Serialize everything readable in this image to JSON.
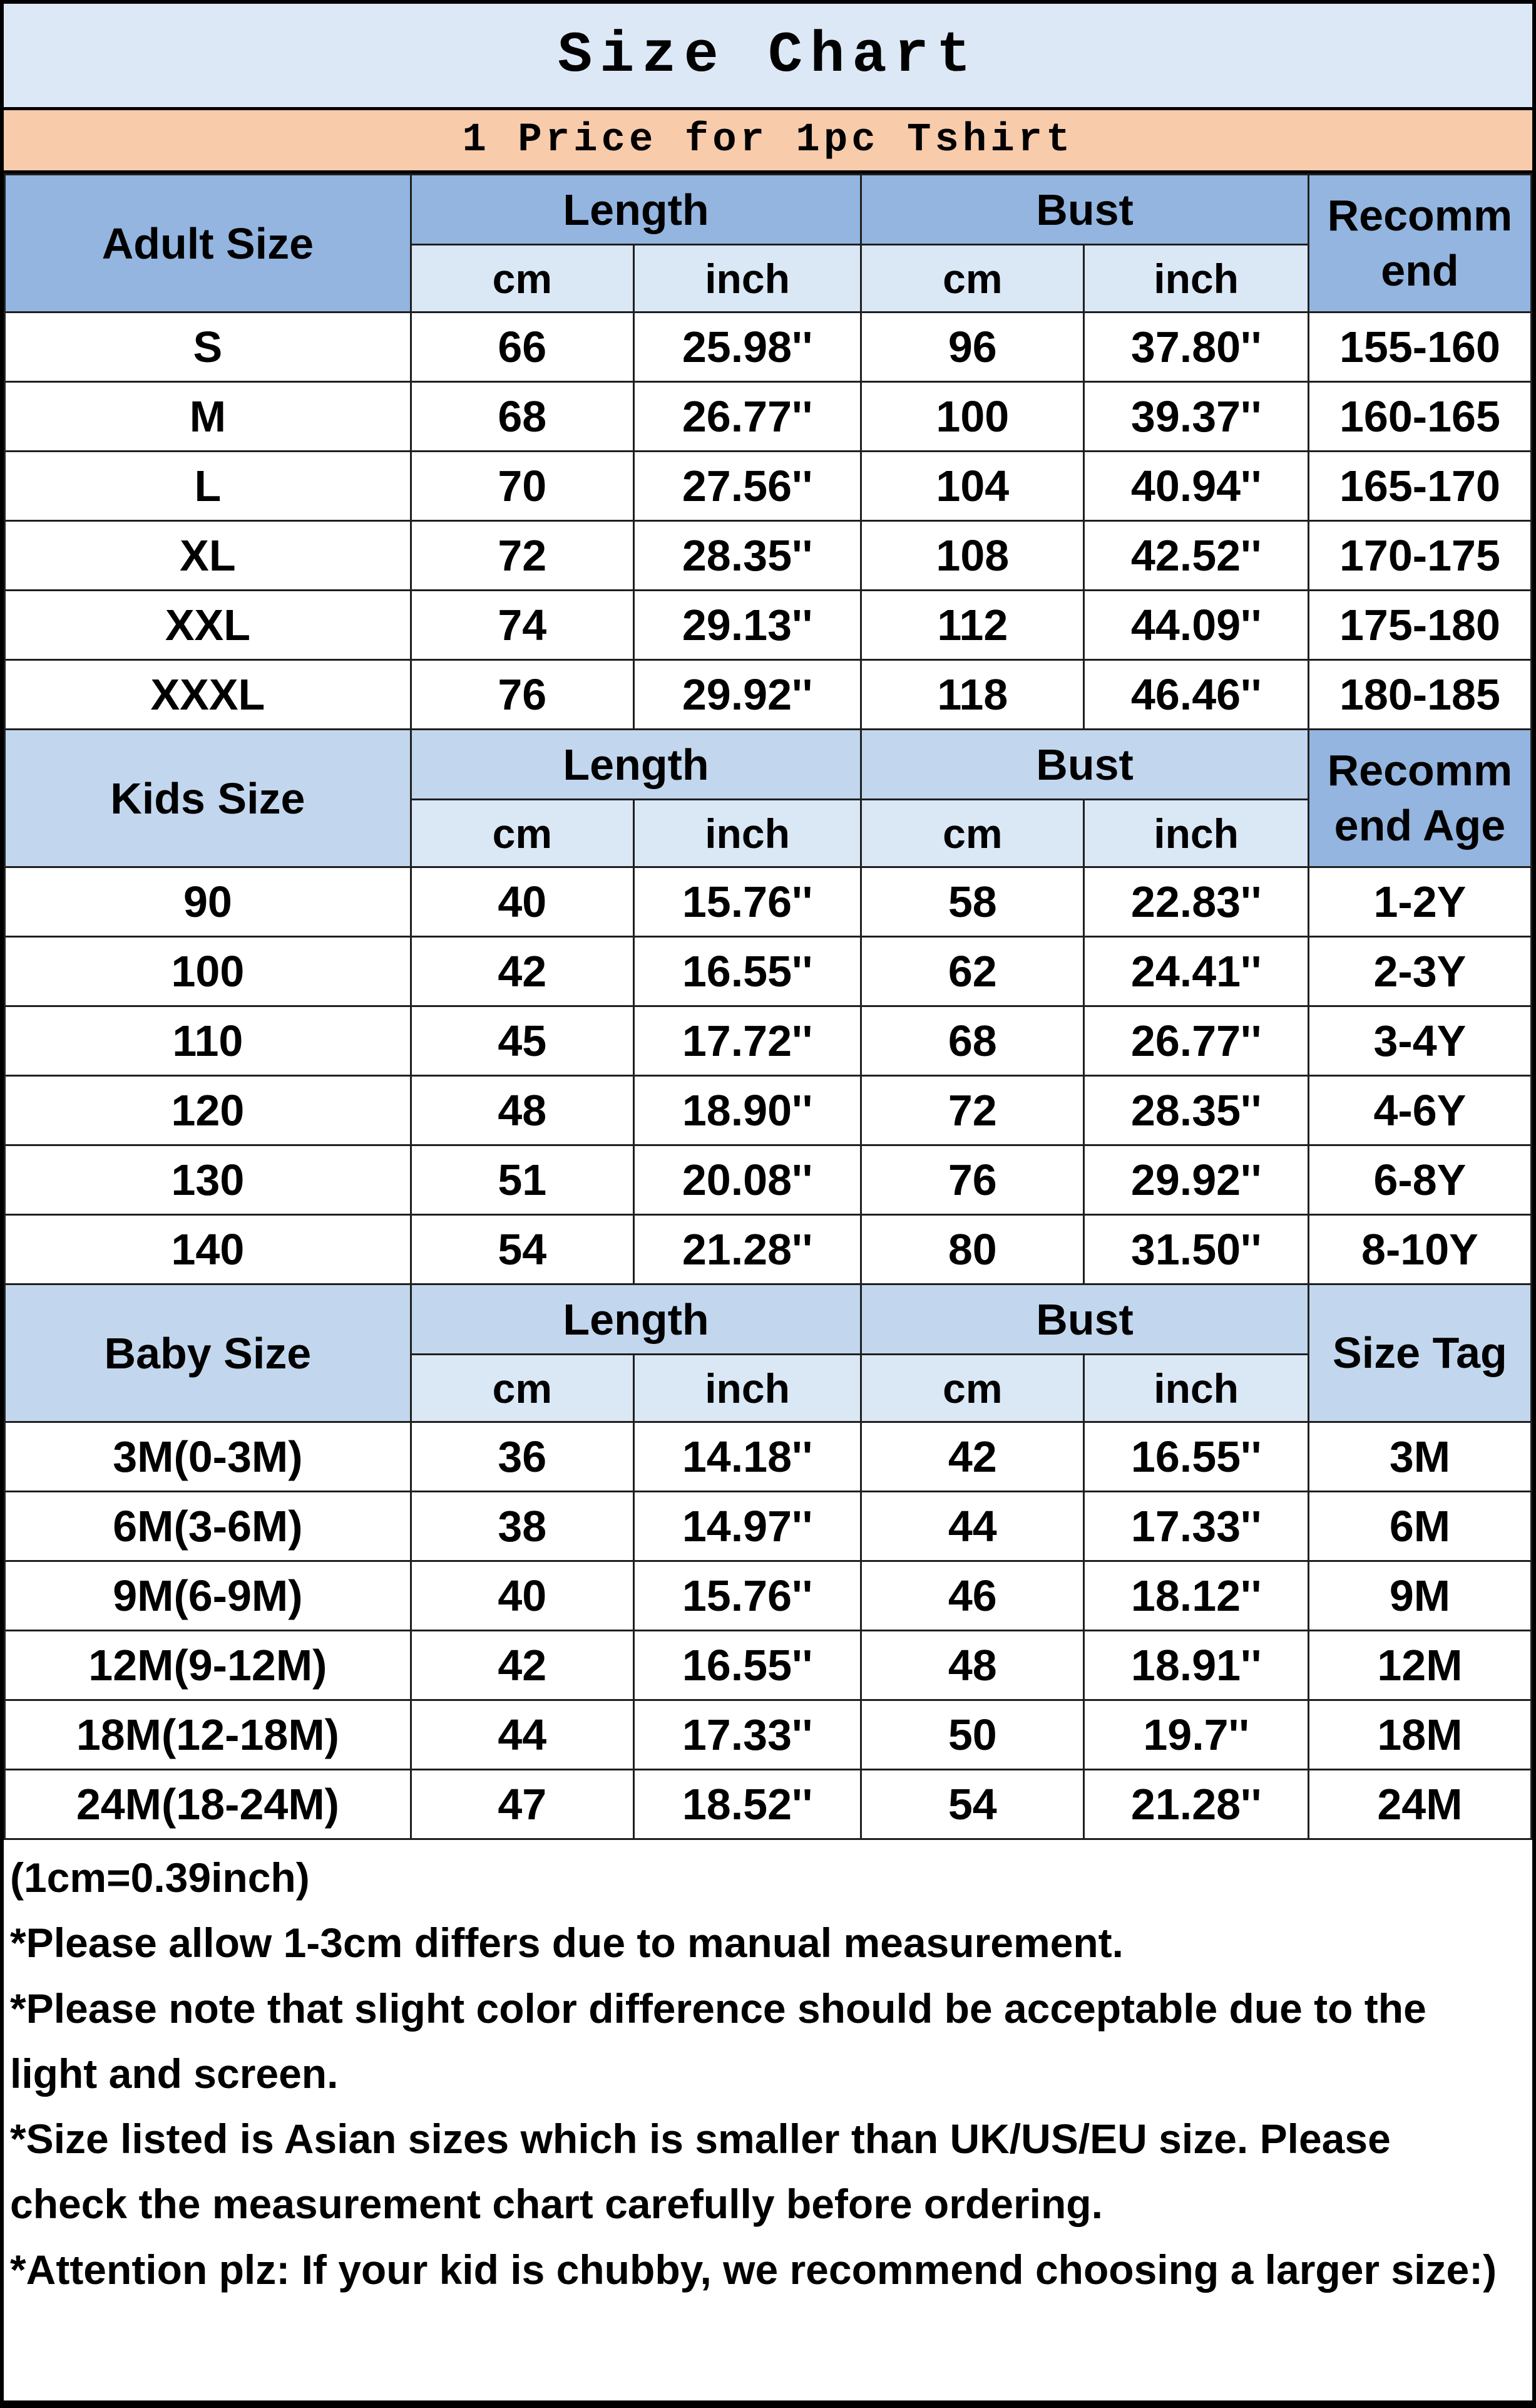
{
  "title": "Size Chart",
  "banner": "1 Price for 1pc Tshirt",
  "colors": {
    "title_bg": "#dce8f5",
    "banner_bg": "#f8cbab",
    "header_dark_blue": "#93b5e0",
    "header_light_blue": "#c2d7ee",
    "unit_row_bg": "#dae7f4",
    "row_bg": "#ffffff",
    "border": "#000000",
    "text": "#000000"
  },
  "sections": [
    {
      "label": "Adult Size",
      "label_shade": "dark",
      "group_shade": "dark",
      "last_shade": "dark",
      "group_headers": [
        "Length",
        "Bust"
      ],
      "unit_headers": [
        "cm",
        "inch",
        "cm",
        "inch"
      ],
      "last_header_lines": [
        "Recomm",
        "end"
      ],
      "rows": [
        [
          "S",
          "66",
          "25.98''",
          "96",
          "37.80''",
          "155-160"
        ],
        [
          "M",
          "68",
          "26.77''",
          "100",
          "39.37''",
          "160-165"
        ],
        [
          "L",
          "70",
          "27.56''",
          "104",
          "40.94''",
          "165-170"
        ],
        [
          "XL",
          "72",
          "28.35''",
          "108",
          "42.52''",
          "170-175"
        ],
        [
          "XXL",
          "74",
          "29.13''",
          "112",
          "44.09''",
          "175-180"
        ],
        [
          "XXXL",
          "76",
          "29.92''",
          "118",
          "46.46''",
          "180-185"
        ]
      ]
    },
    {
      "label": "Kids Size",
      "label_shade": "light",
      "group_shade": "light",
      "last_shade": "dark",
      "group_headers": [
        "Length",
        "Bust"
      ],
      "unit_headers": [
        "cm",
        "inch",
        "cm",
        "inch"
      ],
      "last_header_lines": [
        "Recomm",
        "end Age"
      ],
      "rows": [
        [
          "90",
          "40",
          "15.76''",
          "58",
          "22.83''",
          "1-2Y"
        ],
        [
          "100",
          "42",
          "16.55''",
          "62",
          "24.41''",
          "2-3Y"
        ],
        [
          "110",
          "45",
          "17.72''",
          "68",
          "26.77''",
          "3-4Y"
        ],
        [
          "120",
          "48",
          "18.90''",
          "72",
          "28.35''",
          "4-6Y"
        ],
        [
          "130",
          "51",
          "20.08''",
          "76",
          "29.92''",
          "6-8Y"
        ],
        [
          "140",
          "54",
          "21.28''",
          "80",
          "31.50''",
          "8-10Y"
        ]
      ]
    },
    {
      "label": "Baby Size",
      "label_shade": "light",
      "group_shade": "light",
      "last_shade": "light",
      "group_headers": [
        "Length",
        "Bust"
      ],
      "unit_headers": [
        "cm",
        "inch",
        "cm",
        "inch"
      ],
      "last_header_lines": [
        "Size Tag"
      ],
      "rows": [
        [
          "3M(0-3M)",
          "36",
          "14.18''",
          "42",
          "16.55''",
          "3M"
        ],
        [
          "6M(3-6M)",
          "38",
          "14.97''",
          "44",
          "17.33''",
          "6M"
        ],
        [
          "9M(6-9M)",
          "40",
          "15.76''",
          "46",
          "18.12''",
          "9M"
        ],
        [
          "12M(9-12M)",
          "42",
          "16.55''",
          "48",
          "18.91''",
          "12M"
        ],
        [
          "18M(12-18M)",
          "44",
          "17.33''",
          "50",
          "19.7''",
          "18M"
        ],
        [
          "24M(18-24M)",
          "47",
          "18.52''",
          "54",
          "21.28''",
          "24M"
        ]
      ]
    }
  ],
  "notes": [
    "(1cm=0.39inch)",
    "*Please allow 1-3cm differs due to manual measurement.",
    "*Please note that slight color difference should be acceptable due to the light and screen.",
    "*Size listed is Asian sizes which is smaller than UK/US/EU size. Please check the measurement chart carefully before ordering.",
    "*Attention plz: If your kid is chubby, we recommend choosing a larger size:)"
  ]
}
